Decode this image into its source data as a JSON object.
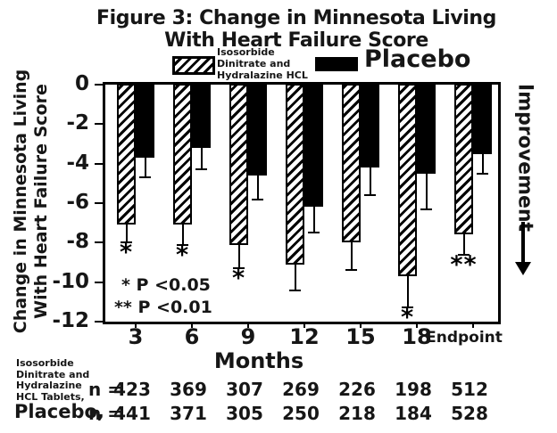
{
  "title": {
    "line1": "Figure 3: Change in Minnesota Living",
    "line2": "With Heart Failure Score"
  },
  "legend": {
    "treatment": "Isosorbide Dinitrate and Hydralazine HCL Tablets",
    "placebo": "Placebo"
  },
  "chart_data": {
    "type": "bar",
    "categories": [
      "3",
      "6",
      "9",
      "12",
      "15",
      "18",
      "Endpoint"
    ],
    "xlabel": "Months",
    "ylabel": "Change in Minnesota Living With Heart Failure Score",
    "ylabel_lines": [
      "Change in Minnesota Living",
      "With Heart Failure Score"
    ],
    "ylim": [
      -12,
      0
    ],
    "yticks": [
      0,
      -2,
      -4,
      -6,
      -8,
      -10,
      -12
    ],
    "grid": false,
    "legend_position": "top",
    "series": [
      {
        "name": "Isosorbide Dinitrate and Hydralazine HCL Tablets",
        "style": "hatched",
        "values": [
          -7.1,
          -7.1,
          -8.1,
          -9.1,
          -8.0,
          -9.7,
          -7.6
        ],
        "error_to": [
          -8.0,
          -8.1,
          -9.3,
          -10.4,
          -9.4,
          -11.3,
          -8.6
        ],
        "significance": [
          "*",
          "*",
          "*",
          "",
          "",
          "*",
          "**"
        ],
        "n": [
          423,
          369,
          307,
          269,
          226,
          198,
          512
        ]
      },
      {
        "name": "Placebo",
        "style": "solid",
        "values": [
          -3.7,
          -3.2,
          -4.6,
          -6.2,
          -4.2,
          -4.5,
          -3.5
        ],
        "error_to": [
          -4.7,
          -4.3,
          -5.8,
          -7.5,
          -5.6,
          -6.3,
          -4.5
        ],
        "significance": [
          "",
          "",
          "",
          "",
          "",
          "",
          ""
        ],
        "n": [
          441,
          371,
          305,
          250,
          218,
          184,
          528
        ]
      }
    ],
    "annotations": {
      "sig_note_1": "* P <0.05",
      "sig_note_2": "** P <0.01",
      "improvement_label": "Improvement"
    }
  },
  "footer": {
    "treatment_row_label": "Isosorbide Dinitrate and Hydralazine HCL Tablets,",
    "placebo_row_label": "Placebo,",
    "n_prefix": "n ="
  },
  "colors": {
    "ink": "#000000",
    "background": "#ffffff"
  }
}
